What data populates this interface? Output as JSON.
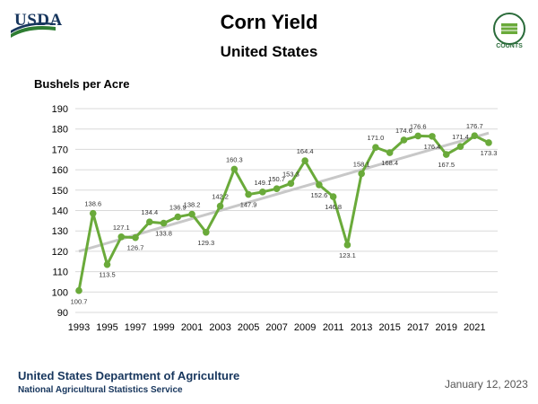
{
  "header": {
    "logo_text": "USDA",
    "seal_text": "COUNTS",
    "title": "Corn Yield",
    "subtitle": "United States"
  },
  "footer": {
    "organization": "United States Department of Agriculture",
    "service": "National Agricultural Statistics Service",
    "date": "January 12, 2023"
  },
  "colors": {
    "series": "#6aaa3a",
    "trend": "#c8c8c8",
    "grid": "#d9d9d9",
    "brand": "#17365d"
  },
  "chart_data": {
    "type": "line",
    "title": "Corn Yield",
    "subtitle": "United States",
    "ylabel": "Bushels per Acre",
    "xlabel": "",
    "ylim": [
      90,
      190
    ],
    "yticks": [
      90,
      100,
      110,
      120,
      130,
      140,
      150,
      160,
      170,
      180,
      190
    ],
    "xticks": [
      1993,
      1995,
      1997,
      1999,
      2001,
      2003,
      2005,
      2007,
      2009,
      2011,
      2013,
      2015,
      2017,
      2019,
      2021
    ],
    "grid": true,
    "series": [
      {
        "name": "Yield",
        "x": [
          1993,
          1994,
          1995,
          1996,
          1997,
          1998,
          1999,
          2000,
          2001,
          2002,
          2003,
          2004,
          2005,
          2006,
          2007,
          2008,
          2009,
          2010,
          2011,
          2012,
          2013,
          2014,
          2015,
          2016,
          2017,
          2018,
          2019,
          2020,
          2021,
          2022
        ],
        "values": [
          100.7,
          138.6,
          113.5,
          127.1,
          126.7,
          134.4,
          133.8,
          136.9,
          138.2,
          129.3,
          142.2,
          160.3,
          147.9,
          149.1,
          150.7,
          153.3,
          164.4,
          152.6,
          146.8,
          123.1,
          158.1,
          171.0,
          168.4,
          174.6,
          176.6,
          176.4,
          167.5,
          171.4,
          176.7,
          173.3
        ],
        "labels": [
          "100.7",
          "138.6",
          "113.5",
          "127.1",
          "126.7",
          "134.4",
          "133.8",
          "136.9",
          "138.2",
          "129.3",
          "142.2",
          "160.3",
          "147.9",
          "149.1",
          "150.7",
          "153.3",
          "164.4",
          "152.6",
          "146.8",
          "123.1",
          "158.1",
          "171.0",
          "168.4",
          "174.6",
          "176.6",
          "176.4",
          "167.5",
          "171.4",
          "176.7",
          "173.3"
        ]
      },
      {
        "name": "Trend",
        "x": [
          1993,
          2022
        ],
        "values": [
          120,
          178
        ]
      }
    ]
  }
}
